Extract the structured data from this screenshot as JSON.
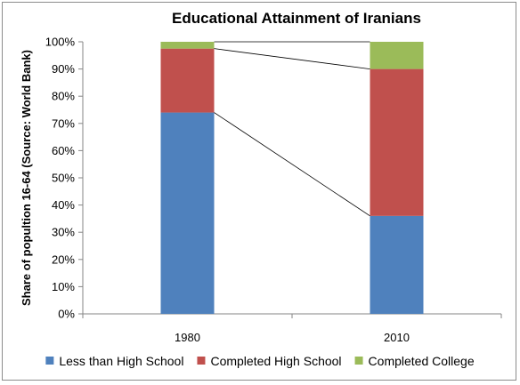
{
  "chart_data": {
    "type": "bar",
    "stacked": true,
    "title": "Educational Attainment of Iranians",
    "xlabel": "",
    "ylabel": "Share of popultion 16-64 (Source: World Bank)",
    "categories": [
      "1980",
      "2010"
    ],
    "series": [
      {
        "name": "Less than High School",
        "values": [
          74,
          36
        ],
        "color": "#4f81bd"
      },
      {
        "name": "Completed High School",
        "values": [
          23.5,
          54
        ],
        "color": "#c0504d"
      },
      {
        "name": "Completed College",
        "values": [
          2.5,
          10
        ],
        "color": "#9bbb59"
      }
    ],
    "ylim": [
      0,
      100
    ],
    "yticks": [
      "0%",
      "10%",
      "20%",
      "30%",
      "40%",
      "50%",
      "60%",
      "70%",
      "80%",
      "90%",
      "100%"
    ],
    "grid": false,
    "legend": "bottom",
    "connector_lines": true
  }
}
